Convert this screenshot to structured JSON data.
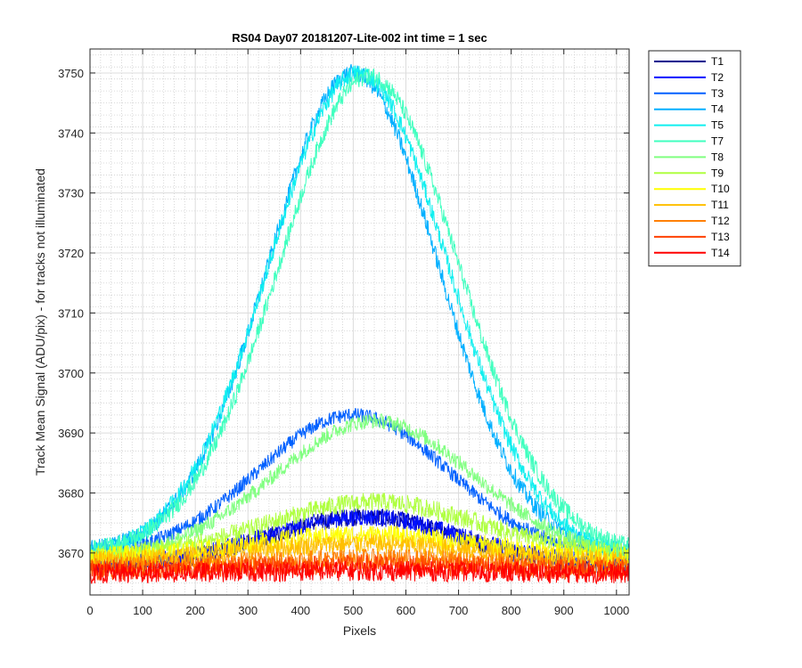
{
  "chart_data": {
    "type": "line",
    "title": "RS04 Day07 20181207-Lite-002 int time = 1 sec",
    "xlabel": "Pixels",
    "ylabel": "Track Mean Signal (ADU/pix) - for tracks not illuminated",
    "xlim": [
      0,
      1024
    ],
    "ylim": [
      3663,
      3754
    ],
    "xticks": [
      0,
      100,
      200,
      300,
      400,
      500,
      600,
      700,
      800,
      900,
      1000
    ],
    "yticks": [
      3670,
      3680,
      3690,
      3700,
      3710,
      3720,
      3730,
      3740,
      3750
    ],
    "grid": true,
    "minor_grid": true,
    "legend_position": "outside-top-right",
    "noise_note_free": true,
    "series": [
      {
        "name": "T1",
        "color": "#00008F",
        "base": 3667.5,
        "peak_add": 8.5,
        "center": 520,
        "sigma": 185,
        "noise": 1.5
      },
      {
        "name": "T2",
        "color": "#0010FF",
        "base": 3668.0,
        "peak_add": 8.0,
        "center": 520,
        "sigma": 185,
        "noise": 1.5
      },
      {
        "name": "T3",
        "color": "#0060FF",
        "base": 3669.5,
        "peak_add": 23.5,
        "center": 500,
        "sigma": 180,
        "noise": 1.2
      },
      {
        "name": "T4",
        "color": "#00AFFF",
        "base": 3670.0,
        "peak_add": 80.0,
        "center": 500,
        "sigma": 160,
        "noise": 1.5
      },
      {
        "name": "T5",
        "color": "#10EFEF",
        "base": 3669.0,
        "peak_add": 81.0,
        "center": 510,
        "sigma": 170,
        "noise": 1.5
      },
      {
        "name": "T7",
        "color": "#40FFBF",
        "base": 3670.0,
        "peak_add": 79.5,
        "center": 530,
        "sigma": 170,
        "noise": 1.5
      },
      {
        "name": "T8",
        "color": "#80FF80",
        "base": 3669.0,
        "peak_add": 23.0,
        "center": 540,
        "sigma": 190,
        "noise": 1.3
      },
      {
        "name": "T9",
        "color": "#AFFF40",
        "base": 3669.5,
        "peak_add": 9.0,
        "center": 540,
        "sigma": 200,
        "noise": 1.6
      },
      {
        "name": "T10",
        "color": "#FFFF00",
        "base": 3669.0,
        "peak_add": 4.0,
        "center": 520,
        "sigma": 220,
        "noise": 1.7
      },
      {
        "name": "T11",
        "color": "#FFBF00",
        "base": 3668.5,
        "peak_add": 3.0,
        "center": 520,
        "sigma": 220,
        "noise": 1.7
      },
      {
        "name": "T12",
        "color": "#FF8000",
        "base": 3667.5,
        "peak_add": 1.5,
        "center": 520,
        "sigma": 240,
        "noise": 1.7
      },
      {
        "name": "T13",
        "color": "#FF4000",
        "base": 3667.0,
        "peak_add": 1.0,
        "center": 520,
        "sigma": 250,
        "noise": 1.7
      },
      {
        "name": "T14",
        "color": "#FF0000",
        "base": 3666.5,
        "peak_add": 0.5,
        "center": 520,
        "sigma": 260,
        "noise": 1.7
      }
    ]
  }
}
